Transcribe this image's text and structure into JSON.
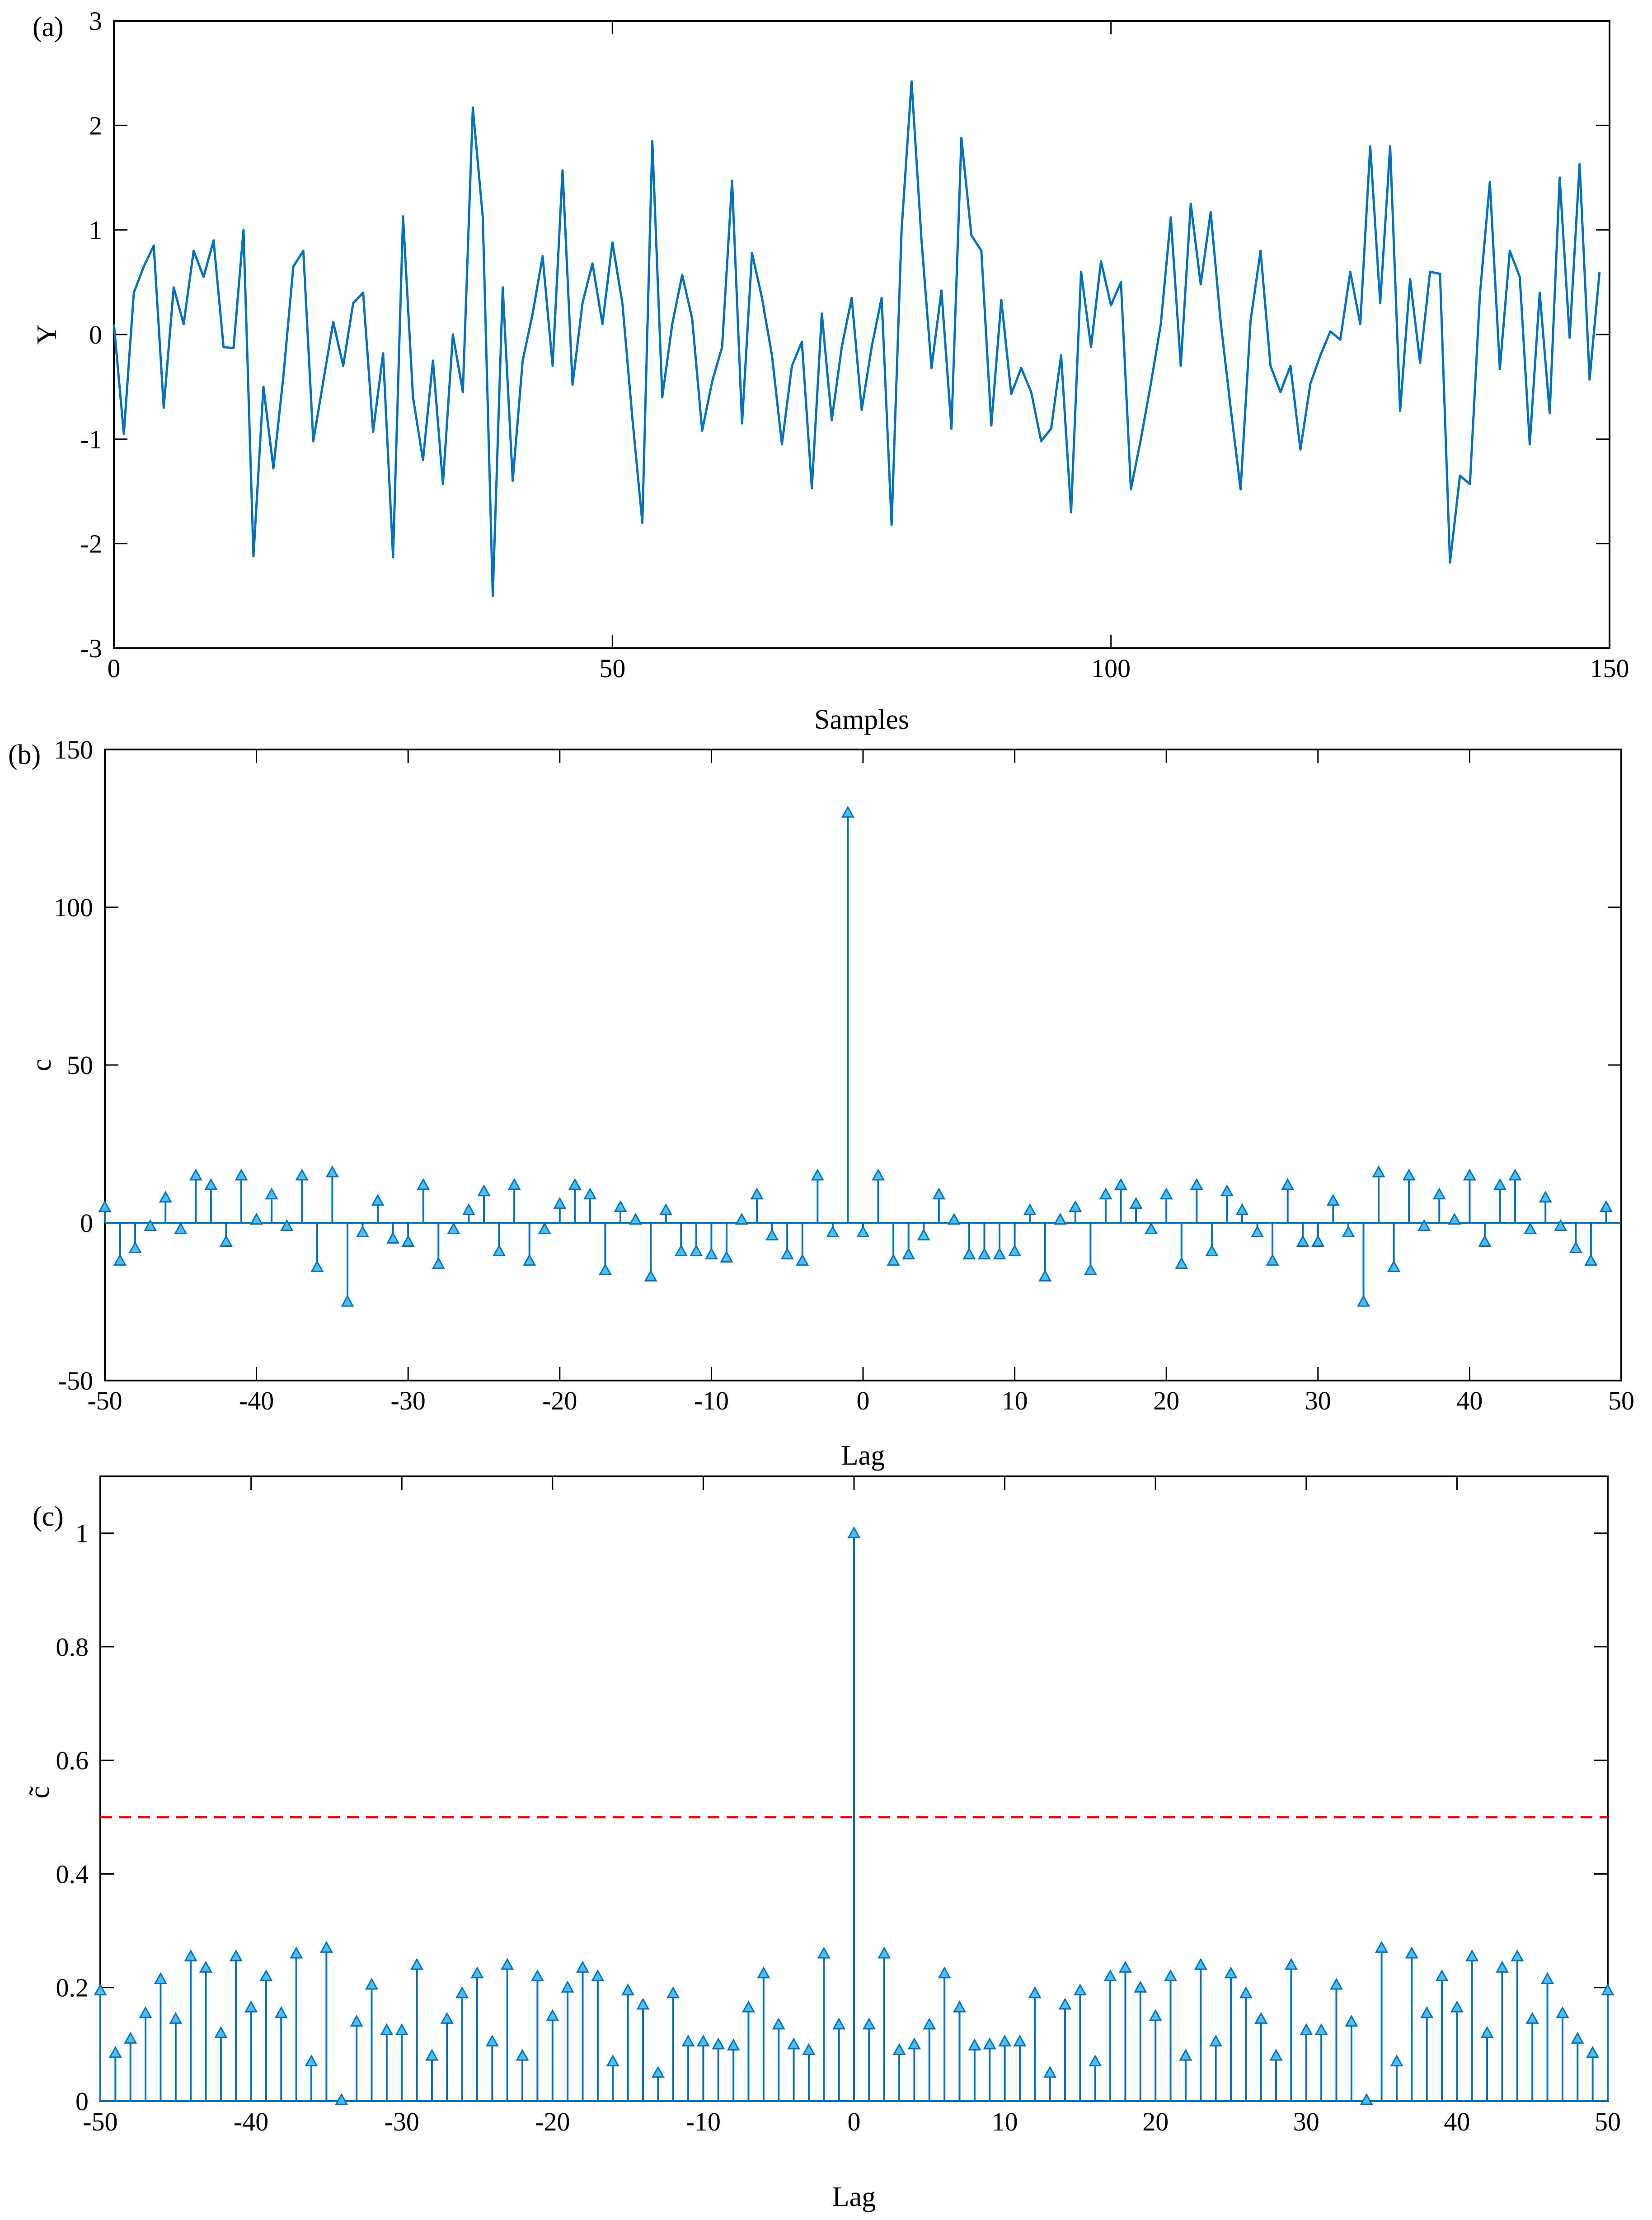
{
  "colors": {
    "series": "#0072BD",
    "marker_fill": "#4DBEEE",
    "threshold": "#FF0000",
    "axes": "#000000"
  },
  "chart_data": [
    {
      "id": "a",
      "panel_tag": "(a)",
      "type": "line",
      "xlabel": "Samples",
      "ylabel": "Y",
      "xlim": [
        0,
        150
      ],
      "ylim": [
        -3,
        3
      ],
      "xticks": [
        0,
        50,
        100,
        150
      ],
      "yticks": [
        -3,
        -2,
        -1,
        0,
        1,
        2,
        3
      ],
      "x_start": 0,
      "x_step": 1,
      "values": [
        0.1,
        -0.95,
        0.4,
        0.65,
        0.85,
        -0.7,
        0.45,
        0.1,
        0.8,
        0.55,
        0.9,
        -0.12,
        -0.13,
        1.0,
        -2.12,
        -0.5,
        -1.28,
        -0.4,
        0.65,
        0.8,
        -1.02,
        -0.45,
        0.12,
        -0.3,
        0.3,
        0.4,
        -0.93,
        -0.18,
        -2.13,
        1.13,
        -0.6,
        -1.2,
        -0.25,
        -1.43,
        0.0,
        -0.55,
        2.17,
        1.12,
        -2.5,
        0.45,
        -1.4,
        -0.25,
        0.2,
        0.75,
        -0.3,
        1.57,
        -0.48,
        0.3,
        0.68,
        0.1,
        0.88,
        0.3,
        -0.8,
        -1.8,
        1.85,
        -0.6,
        0.1,
        0.57,
        0.15,
        -0.92,
        -0.45,
        -0.12,
        1.47,
        -0.85,
        0.78,
        0.35,
        -0.2,
        -1.05,
        -0.3,
        -0.07,
        -1.47,
        0.2,
        -0.82,
        -0.12,
        0.35,
        -0.72,
        -0.12,
        0.35,
        -1.82,
        1.0,
        2.42,
        0.9,
        -0.32,
        0.42,
        -0.9,
        1.88,
        0.95,
        0.8,
        -0.87,
        0.33,
        -0.57,
        -0.32,
        -0.55,
        -1.02,
        -0.9,
        -0.2,
        -1.7,
        0.6,
        -0.12,
        0.7,
        0.28,
        0.5,
        -1.48,
        -1.0,
        -0.47,
        0.1,
        1.12,
        -0.3,
        1.25,
        0.48,
        1.17,
        0.12,
        -0.7,
        -1.48,
        0.13,
        0.8,
        -0.3,
        -0.55,
        -0.3,
        -1.1,
        -0.47,
        -0.2,
        0.03,
        -0.05,
        0.6,
        0.1,
        1.8,
        0.3,
        1.8,
        -0.73,
        0.53,
        -0.27,
        0.6,
        0.58,
        -2.18,
        -1.35,
        -1.43,
        0.38,
        1.46,
        -0.33,
        0.8,
        0.55,
        -1.05,
        0.4,
        -0.75,
        1.5,
        -0.03,
        1.63,
        -0.43,
        0.6
      ]
    },
    {
      "id": "b",
      "panel_tag": "(b)",
      "type": "stem",
      "xlabel": "Lag",
      "ylabel": "c",
      "xlim": [
        -50,
        50
      ],
      "ylim": [
        -50,
        150
      ],
      "xticks": [
        -50,
        -40,
        -30,
        -20,
        -10,
        0,
        10,
        20,
        30,
        40,
        50
      ],
      "yticks": [
        -50,
        0,
        50,
        100,
        150
      ],
      "x_start": -50,
      "x_step": 1,
      "values": [
        5,
        -12,
        -8,
        -1,
        8,
        -2,
        15,
        12,
        -6,
        15,
        1,
        9,
        -1,
        15,
        -14,
        16,
        -25,
        -3,
        7,
        -5,
        -6,
        12,
        -13,
        -2,
        4,
        10,
        -9,
        12,
        -12,
        -2,
        6,
        12,
        9,
        -15,
        5,
        1,
        -17,
        4,
        -9,
        -9,
        -10,
        -11,
        1,
        9,
        -4,
        -10,
        -12,
        15,
        -3,
        130,
        -3,
        15,
        -12,
        -10,
        -4,
        9,
        1,
        -10,
        -10,
        -10,
        -9,
        4,
        -17,
        1,
        5,
        -15,
        9,
        12,
        6,
        -2,
        9,
        -13,
        12,
        -9,
        10,
        4,
        -3,
        -12,
        12,
        -6,
        -6,
        7,
        -3,
        -25,
        16,
        -14,
        15,
        -1,
        9,
        1,
        15,
        -6,
        12,
        15,
        -2,
        8,
        -1,
        -8,
        -12,
        5
      ]
    },
    {
      "id": "c",
      "panel_tag": "(c)",
      "type": "stem",
      "xlabel": "Lag",
      "ylabel": "c̃",
      "xlim": [
        -50,
        50
      ],
      "ylim": [
        0,
        1.1
      ],
      "xticks": [
        -50,
        -40,
        -30,
        -20,
        -10,
        0,
        10,
        20,
        30,
        40,
        50
      ],
      "yticks": [
        0,
        0.2,
        0.4,
        0.6,
        0.8,
        1
      ],
      "x_start": -50,
      "x_step": 1,
      "threshold": 0.5,
      "values": [
        0.195,
        0.085,
        0.11,
        0.155,
        0.215,
        0.145,
        0.255,
        0.235,
        0.12,
        0.255,
        0.165,
        0.22,
        0.155,
        0.26,
        0.07,
        0.27,
        0.002,
        0.14,
        0.205,
        0.125,
        0.125,
        0.24,
        0.08,
        0.145,
        0.19,
        0.225,
        0.105,
        0.24,
        0.08,
        0.22,
        0.15,
        0.2,
        0.235,
        0.22,
        0.07,
        0.195,
        0.17,
        0.05,
        0.19,
        0.105,
        0.105,
        0.1,
        0.098,
        0.165,
        0.225,
        0.135,
        0.1,
        0.09,
        0.26,
        0.135,
        1.0,
        0.135,
        0.26,
        0.09,
        0.1,
        0.135,
        0.225,
        0.165,
        0.098,
        0.1,
        0.105,
        0.105,
        0.19,
        0.05,
        0.17,
        0.195,
        0.07,
        0.22,
        0.235,
        0.2,
        0.15,
        0.22,
        0.08,
        0.24,
        0.105,
        0.225,
        0.19,
        0.145,
        0.08,
        0.24,
        0.125,
        0.125,
        0.205,
        0.14,
        0.002,
        0.27,
        0.07,
        0.26,
        0.155,
        0.22,
        0.165,
        0.255,
        0.12,
        0.235,
        0.255,
        0.145,
        0.215,
        0.155,
        0.11,
        0.085,
        0.195
      ]
    }
  ]
}
